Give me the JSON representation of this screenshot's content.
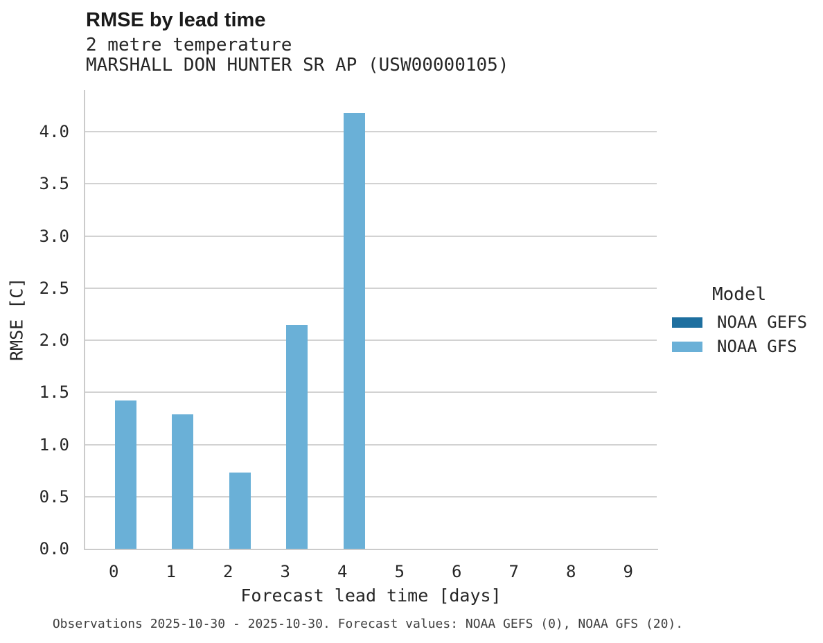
{
  "header": {
    "title": "RMSE by lead time",
    "subtitle_variable": "2 metre temperature",
    "subtitle_station": "MARSHALL DON HUNTER SR AP (USW00000105)"
  },
  "chart_data": {
    "type": "bar",
    "title": "RMSE by lead time",
    "subtitle": [
      "2 metre temperature",
      "MARSHALL DON HUNTER SR AP (USW00000105)"
    ],
    "categories": [
      0,
      1,
      2,
      3,
      4,
      5,
      6,
      7,
      8,
      9
    ],
    "series": [
      {
        "name": "NOAA GEFS",
        "color": "#1e6f9f",
        "values": [
          null,
          null,
          null,
          null,
          null,
          null,
          null,
          null,
          null,
          null
        ]
      },
      {
        "name": "NOAA GFS",
        "color": "#6ab0d7",
        "values": [
          1.42,
          1.29,
          0.73,
          2.15,
          4.18,
          null,
          null,
          null,
          null,
          null
        ]
      }
    ],
    "xlabel": "Forecast lead time [days]",
    "ylabel": "RMSE [C]",
    "ylim": [
      0,
      4.4
    ],
    "yticks": [
      0.0,
      0.5,
      1.0,
      1.5,
      2.0,
      2.5,
      3.0,
      3.5,
      4.0
    ],
    "grid": true,
    "legend_title": "Model",
    "legend_position": "right"
  },
  "legend": {
    "title": "Model",
    "items": [
      {
        "label": "NOAA GEFS",
        "color": "#1e6f9f"
      },
      {
        "label": "NOAA GFS",
        "color": "#6ab0d7"
      }
    ]
  },
  "footer": {
    "caption": "Observations 2025-10-30 - 2025-10-30. Forecast values: NOAA GEFS (0), NOAA GFS (20)."
  },
  "colors": {
    "bar_light_blue": "#6ab0d7",
    "bar_dark_blue": "#1e6f9f",
    "gridline": "#d2d2d2",
    "axis_spine": "#cbcbcb",
    "text": "#262626",
    "footer_text": "#3f3f3f",
    "background": "#ffffff"
  }
}
